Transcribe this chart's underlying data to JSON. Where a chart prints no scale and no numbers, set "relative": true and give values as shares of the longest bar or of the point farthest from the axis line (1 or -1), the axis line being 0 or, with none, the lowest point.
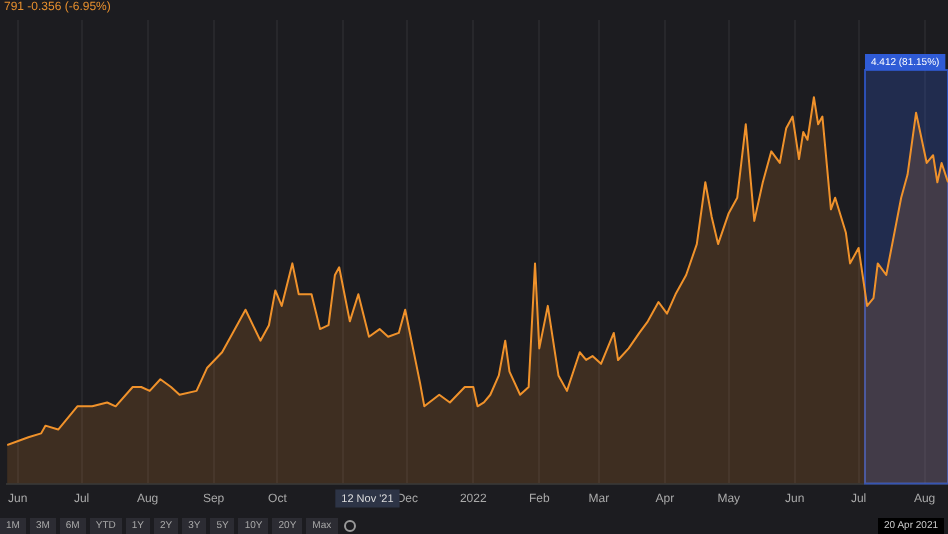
{
  "chart_data": {
    "type": "area",
    "title": "791 -0.356 (-6.95%)",
    "relative": true,
    "grid": "x",
    "x": [
      "2021-05-27",
      "2021-06-06",
      "2021-06-12",
      "2021-06-14",
      "2021-06-20",
      "2021-06-29",
      "2021-07-06",
      "2021-07-13",
      "2021-07-17",
      "2021-07-25",
      "2021-07-29",
      "2021-08-02",
      "2021-08-07",
      "2021-08-12",
      "2021-08-16",
      "2021-08-24",
      "2021-08-29",
      "2021-09-05",
      "2021-09-10",
      "2021-09-16",
      "2021-09-23",
      "2021-09-27",
      "2021-09-30",
      "2021-10-03",
      "2021-10-08",
      "2021-10-11",
      "2021-10-17",
      "2021-10-21",
      "2021-10-25",
      "2021-10-28",
      "2021-10-30",
      "2021-11-04",
      "2021-11-08",
      "2021-11-13",
      "2021-11-18",
      "2021-11-22",
      "2021-11-27",
      "2021-11-30",
      "2021-12-07",
      "2021-12-09",
      "2021-12-16",
      "2021-12-21",
      "2021-12-28",
      "2022-01-01",
      "2022-01-03",
      "2022-01-06",
      "2022-01-09",
      "2022-01-13",
      "2022-01-16",
      "2022-01-18",
      "2022-01-23",
      "2022-01-27",
      "2022-01-30",
      "2022-02-01",
      "2022-02-05",
      "2022-02-10",
      "2022-02-14",
      "2022-02-20",
      "2022-02-23",
      "2022-02-26",
      "2022-03-02",
      "2022-03-08",
      "2022-03-10",
      "2022-03-15",
      "2022-03-20",
      "2022-03-24",
      "2022-03-29",
      "2022-04-02",
      "2022-04-06",
      "2022-04-11",
      "2022-04-16",
      "2022-04-20",
      "2022-04-23",
      "2022-04-26",
      "2022-05-01",
      "2022-05-05",
      "2022-05-09",
      "2022-05-13",
      "2022-05-17",
      "2022-05-21",
      "2022-05-25",
      "2022-05-28",
      "2022-05-31",
      "2022-06-03",
      "2022-06-05",
      "2022-06-07",
      "2022-06-10",
      "2022-06-12",
      "2022-06-14",
      "2022-06-18",
      "2022-06-20",
      "2022-06-25",
      "2022-06-27",
      "2022-07-01",
      "2022-07-05",
      "2022-07-08",
      "2022-07-10",
      "2022-07-14",
      "2022-07-21",
      "2022-07-24",
      "2022-07-28",
      "2022-08-02",
      "2022-08-05",
      "2022-08-07",
      "2022-08-09",
      "2022-08-12"
    ],
    "series": [
      {
        "color": "#f0922b",
        "values": [
          0.1,
          0.12,
          0.13,
          0.15,
          0.14,
          0.2,
          0.2,
          0.21,
          0.2,
          0.25,
          0.25,
          0.24,
          0.27,
          0.25,
          0.23,
          0.24,
          0.3,
          0.34,
          0.39,
          0.45,
          0.37,
          0.41,
          0.5,
          0.46,
          0.57,
          0.49,
          0.49,
          0.4,
          0.41,
          0.54,
          0.56,
          0.42,
          0.49,
          0.38,
          0.4,
          0.38,
          0.39,
          0.45,
          0.26,
          0.2,
          0.23,
          0.21,
          0.25,
          0.25,
          0.2,
          0.21,
          0.23,
          0.28,
          0.37,
          0.29,
          0.23,
          0.25,
          0.57,
          0.35,
          0.46,
          0.28,
          0.24,
          0.34,
          0.32,
          0.33,
          0.31,
          0.39,
          0.32,
          0.35,
          0.39,
          0.42,
          0.47,
          0.44,
          0.49,
          0.54,
          0.62,
          0.78,
          0.69,
          0.62,
          0.7,
          0.74,
          0.93,
          0.68,
          0.78,
          0.86,
          0.83,
          0.92,
          0.95,
          0.84,
          0.91,
          0.89,
          1,
          0.93,
          0.95,
          0.71,
          0.74,
          0.65,
          0.57,
          0.61,
          0.46,
          0.48,
          0.57,
          0.54,
          0.74,
          0.8,
          0.96,
          0.83,
          0.85,
          0.78,
          0.83,
          0.78
        ]
      }
    ],
    "xlim": [
      "2021-05-27",
      "2022-08-12"
    ],
    "xticks": [
      {
        "value": "2021-06-01",
        "label": "Jun"
      },
      {
        "value": "2021-07-01",
        "label": "Jul"
      },
      {
        "value": "2021-08-01",
        "label": "Aug"
      },
      {
        "value": "2021-09-01",
        "label": "Sep"
      },
      {
        "value": "2021-10-01",
        "label": "Oct"
      },
      {
        "value": "2021-11-01",
        "label": null
      },
      {
        "value": "2021-12-01",
        "label": "Dec"
      },
      {
        "value": "2022-01-01",
        "label": "2022"
      },
      {
        "value": "2022-02-01",
        "label": "Feb"
      },
      {
        "value": "2022-03-01",
        "label": "Mar"
      },
      {
        "value": "2022-04-01",
        "label": "Apr"
      },
      {
        "value": "2022-05-01",
        "label": "May"
      },
      {
        "value": "2022-06-01",
        "label": "Jun"
      },
      {
        "value": "2022-07-01",
        "label": "Jul"
      },
      {
        "value": "2022-08-01",
        "label": "Aug"
      }
    ],
    "bands": [
      {
        "axis": "x",
        "from": "2022-07-04",
        "to": "2022-08-12",
        "label": "4.412 (81.15%)",
        "color": "#2f5bd6"
      }
    ],
    "annotations": [
      "12 Nov '21",
      "1M",
      "3M",
      "6M",
      "YTD",
      "1Y",
      "2Y",
      "3Y",
      "5Y",
      "10Y",
      "20Y",
      "Max",
      "20 Apr 2021"
    ]
  }
}
